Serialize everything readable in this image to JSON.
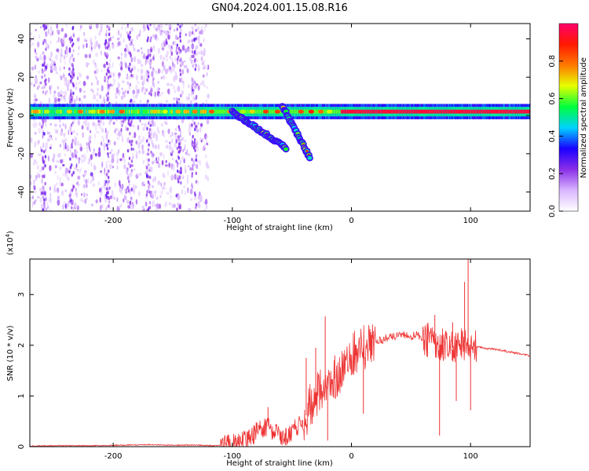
{
  "figure": {
    "title": "GN04.2024.001.15.08.R16"
  },
  "chart_data": [
    {
      "id": "spectrogram",
      "type": "heatmap",
      "title": "",
      "xlabel": "Height of straight line (km)",
      "ylabel": "Frequency (Hz)",
      "xlim": [
        -270,
        150
      ],
      "ylim": [
        -50,
        48
      ],
      "xticks": [
        -200,
        -100,
        0,
        100
      ],
      "yticks": [
        40,
        20,
        0,
        -20,
        -40
      ],
      "grid": false,
      "colorbar": {
        "label": "Normalized spectral amplitude",
        "range": [
          0,
          1
        ],
        "ticks": [
          0.0,
          0.2,
          0.4,
          0.6,
          0.8
        ],
        "tick_labels": [
          "0.0",
          "0.2",
          "0.4",
          "0.6",
          "0.8"
        ],
        "colors": [
          "#ffffff",
          "#d9b6ff",
          "#8b2fe8",
          "#1a00ff",
          "#00d2ff",
          "#00ff3c",
          "#e6ff00",
          "#ff7a00",
          "#ff1a00",
          "#ff006c"
        ]
      },
      "features": {
        "carrier_frequency_hz": 2,
        "noisy_region_x": [
          -270,
          -120
        ],
        "descending_branch_1": {
          "x": [
            -100,
            -55
          ],
          "y": [
            2,
            -17
          ]
        },
        "descending_branch_2": {
          "x": [
            -58,
            -35
          ],
          "y": [
            5,
            -22
          ]
        },
        "strong_band_x": [
          -10,
          150
        ]
      }
    },
    {
      "id": "snr",
      "type": "line",
      "title": "",
      "xlabel": "Height of straight line (km)",
      "ylabel": "SNR (10 * v/v)",
      "y_multiplier": "(x10^4)",
      "y_multiplier_base": "(x10",
      "y_multiplier_exp": "4",
      "y_multiplier_close": ")",
      "xlim": [
        -270,
        150
      ],
      "ylim": [
        0,
        3.7
      ],
      "xticks": [
        -200,
        -100,
        0,
        100
      ],
      "yticks": [
        0,
        1,
        2,
        3
      ],
      "grid": false,
      "line_color": "#ee3333",
      "series": [
        {
          "x": [
            -270,
            -250,
            -230,
            -210,
            -190,
            -170,
            -150,
            -130,
            -115,
            -100,
            -95,
            -90,
            -85,
            -80,
            -75,
            -70,
            -65,
            -60,
            -55,
            -50,
            -45,
            -40,
            -35,
            -30,
            -25,
            -20,
            -15,
            -10,
            -5,
            0,
            5,
            10,
            15,
            20,
            25,
            30,
            35,
            40,
            45,
            50,
            55,
            60,
            65,
            70,
            75,
            80,
            85,
            90,
            95,
            100,
            105,
            110,
            120,
            130,
            140,
            150
          ],
          "y": [
            0.01,
            0.02,
            0.02,
            0.02,
            0.03,
            0.04,
            0.03,
            0.03,
            0.02,
            0.05,
            0.07,
            0.12,
            0.2,
            0.28,
            0.35,
            0.4,
            0.3,
            0.2,
            0.2,
            0.3,
            0.4,
            0.5,
            0.8,
            1.0,
            1.1,
            1.2,
            1.3,
            1.5,
            1.6,
            1.8,
            1.9,
            1.95,
            2.0,
            2.05,
            2.1,
            2.15,
            2.18,
            2.2,
            2.2,
            2.18,
            2.2,
            2.15,
            2.1,
            2.05,
            2.0,
            1.95,
            1.95,
            2.0,
            2.05,
            2.0,
            1.98,
            1.95,
            1.92,
            1.88,
            1.84,
            1.79
          ]
        }
      ],
      "spikes": [
        {
          "x": -80,
          "y": 0.48
        },
        {
          "x": -70,
          "y": 0.78
        },
        {
          "x": -38,
          "y": 1.75
        },
        {
          "x": -30,
          "y": 1.95
        },
        {
          "x": -22,
          "y": 2.57
        },
        {
          "x": -20,
          "y": 0.12
        },
        {
          "x": -14,
          "y": 1.8
        },
        {
          "x": 10,
          "y": 0.65
        },
        {
          "x": 70,
          "y": 2.6
        },
        {
          "x": 74,
          "y": 0.22
        },
        {
          "x": 85,
          "y": 2.45
        },
        {
          "x": 88,
          "y": 0.9
        },
        {
          "x": 95,
          "y": 3.25
        },
        {
          "x": 98,
          "y": 3.7
        },
        {
          "x": 100,
          "y": 0.72
        }
      ]
    }
  ]
}
